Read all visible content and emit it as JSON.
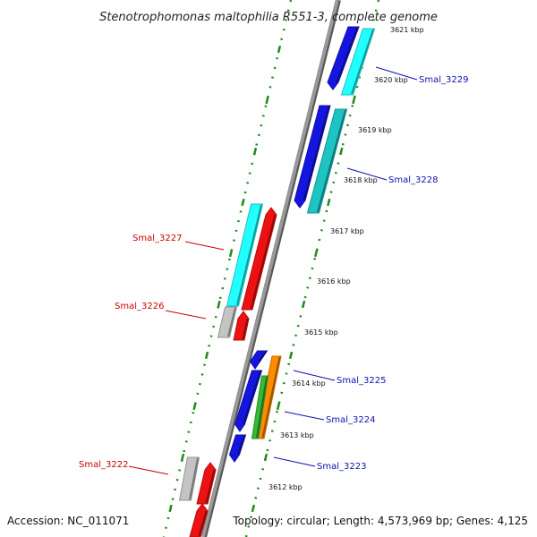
{
  "title": "Stenotrophomonas maltophilia R551-3, complete genome",
  "footer": {
    "accession": "Accession: NC_011071",
    "summary": "Topology: circular; Length: 4,573,969 bp; Genes: 4,125"
  },
  "colors": {
    "backbone": "#9a9a9a",
    "tick": "#1e8c1e",
    "label_right": "#1010b0",
    "label_left": "#cc0000",
    "blue": "#1515e0",
    "cyan": "#22ffff",
    "teal": "#1cc4c4",
    "red": "#ee1111",
    "silver": "#c4c4c4",
    "orange": "#ff8c00",
    "green": "#33bb33"
  },
  "kbp_markers": [
    "3621 kbp",
    "3620 kbp",
    "3619 kbp",
    "3618 kbp",
    "3617 kbp",
    "3616 kbp",
    "3615 kbp",
    "3614 kbp",
    "3613 kbp",
    "3612 kbp"
  ],
  "gene_labels": [
    {
      "name": "Smal_3229",
      "side": "right"
    },
    {
      "name": "Smal_3228",
      "side": "right"
    },
    {
      "name": "Smal_3227",
      "side": "left"
    },
    {
      "name": "Smal_3226",
      "side": "left"
    },
    {
      "name": "Smal_3225",
      "side": "right"
    },
    {
      "name": "Smal_3224",
      "side": "right"
    },
    {
      "name": "Smal_3223",
      "side": "right"
    },
    {
      "name": "Smal_3222",
      "side": "left"
    }
  ]
}
